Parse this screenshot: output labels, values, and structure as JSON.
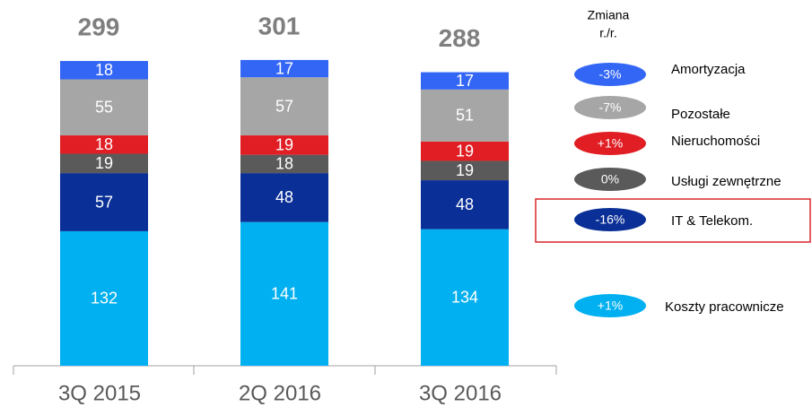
{
  "chart_data": {
    "type": "stacked_bar",
    "categories": [
      "3Q 2015",
      "2Q 2016",
      "3Q 2016"
    ],
    "totals": [
      "299",
      "301",
      "288"
    ],
    "legend_title": [
      "Zmiana",
      "r./r."
    ],
    "series": [
      {
        "name": "Koszty pracownicze",
        "color": "#00b0f0",
        "values": [
          132,
          141,
          134
        ],
        "change": "+1%"
      },
      {
        "name": "IT & Telekom.",
        "color": "#0a2f96",
        "values": [
          57,
          48,
          48
        ],
        "change": "-16%"
      },
      {
        "name": "Usługi zewnętrzne",
        "color": "#5a5a5a",
        "values": [
          19,
          18,
          19
        ],
        "change": "0%"
      },
      {
        "name": "Nieruchomości",
        "color": "#e01e24",
        "values": [
          18,
          19,
          19
        ],
        "change": "+1%"
      },
      {
        "name": "Pozostałe",
        "color": "#a6a6a6",
        "values": [
          55,
          57,
          51
        ],
        "change": "-7%"
      },
      {
        "name": "Amortyzacja",
        "color": "#3366f5",
        "values": [
          18,
          17,
          17
        ],
        "change": "-3%"
      }
    ]
  }
}
